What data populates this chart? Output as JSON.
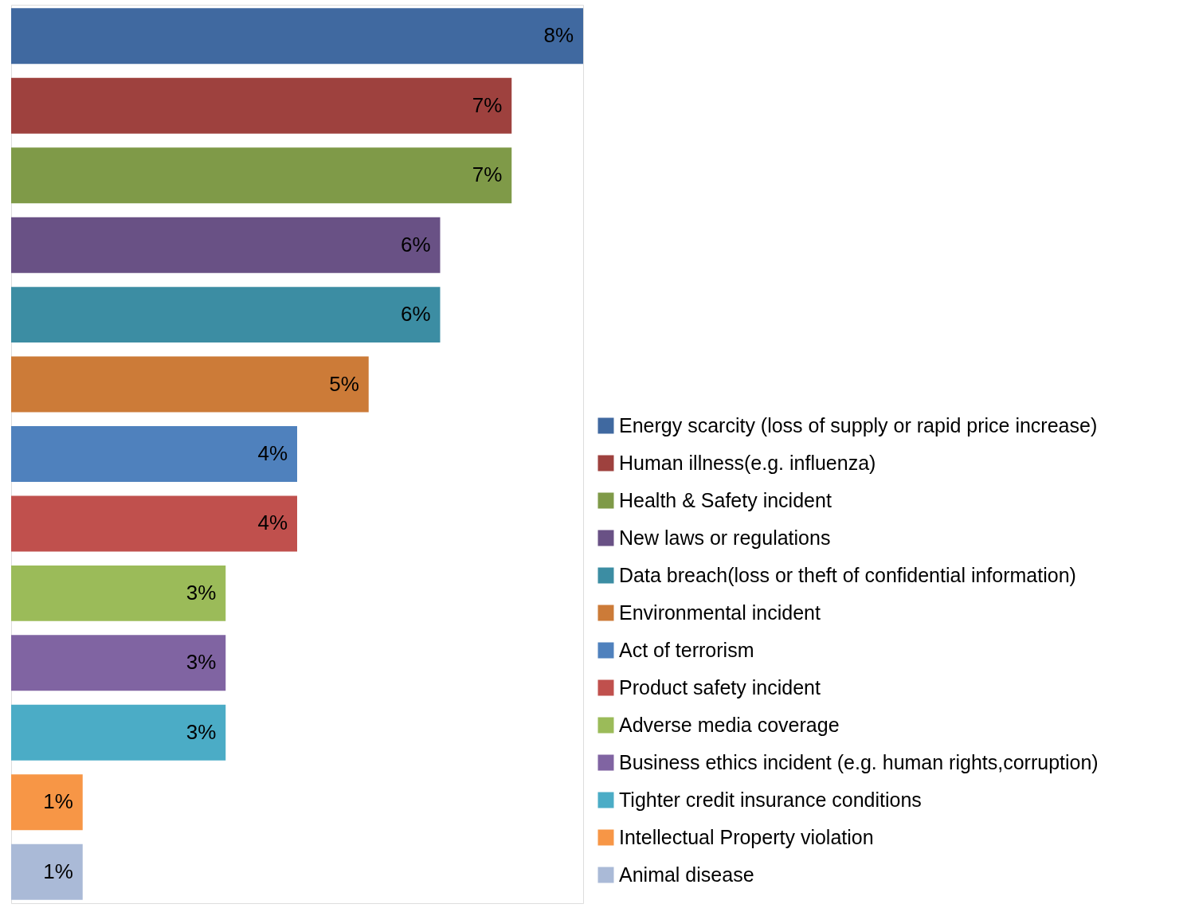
{
  "chart_data": {
    "type": "bar",
    "orientation": "horizontal",
    "stacked": true,
    "legend": "bottom right",
    "tick_labels": false,
    "categories": [
      null,
      null,
      null,
      null,
      null,
      null,
      null,
      null,
      null,
      null,
      null,
      null,
      null
    ],
    "series": [
      {
        "name": "Energy scarcity (loss of supply or rapid price increase)",
        "color": "#4069a0",
        "values": [
          8,
          null,
          null,
          null,
          null,
          null,
          null,
          null,
          null,
          null,
          null,
          null,
          null
        ],
        "value_labels": [
          "8%",
          null,
          null,
          null,
          null,
          null,
          null,
          null,
          null,
          null,
          null,
          null,
          null
        ]
      },
      {
        "name": "Human illness(e.g. influenza)",
        "color": "#9e413e",
        "values": [
          null,
          7,
          null,
          null,
          null,
          null,
          null,
          null,
          null,
          null,
          null,
          null,
          null
        ],
        "value_labels": [
          null,
          "7%",
          null,
          null,
          null,
          null,
          null,
          null,
          null,
          null,
          null,
          null,
          null
        ]
      },
      {
        "name": "Health & Safety incident",
        "color": "#7f9a48",
        "values": [
          null,
          null,
          7,
          null,
          null,
          null,
          null,
          null,
          null,
          null,
          null,
          null,
          null
        ],
        "value_labels": [
          null,
          null,
          "7%",
          null,
          null,
          null,
          null,
          null,
          null,
          null,
          null,
          null,
          null
        ]
      },
      {
        "name": "New laws or regulations",
        "color": "#695185",
        "values": [
          null,
          null,
          null,
          6,
          null,
          null,
          null,
          null,
          null,
          null,
          null,
          null,
          null
        ],
        "value_labels": [
          null,
          null,
          null,
          "6%",
          null,
          null,
          null,
          null,
          null,
          null,
          null,
          null,
          null
        ]
      },
      {
        "name": "Data breach(loss or theft of confidential information)",
        "color": "#3c8da3",
        "values": [
          null,
          null,
          null,
          null,
          6,
          null,
          null,
          null,
          null,
          null,
          null,
          null,
          null
        ],
        "value_labels": [
          null,
          null,
          null,
          null,
          "6%",
          null,
          null,
          null,
          null,
          null,
          null,
          null,
          null
        ]
      },
      {
        "name": "Environmental incident",
        "color": "#cc7b38",
        "values": [
          null,
          null,
          null,
          null,
          null,
          5,
          null,
          null,
          null,
          null,
          null,
          null,
          null
        ],
        "value_labels": [
          null,
          null,
          null,
          null,
          null,
          "5%",
          null,
          null,
          null,
          null,
          null,
          null,
          null
        ]
      },
      {
        "name": "Act of terrorism",
        "color": "#4f81bd",
        "values": [
          null,
          null,
          null,
          null,
          null,
          null,
          4,
          null,
          null,
          null,
          null,
          null,
          null
        ],
        "value_labels": [
          null,
          null,
          null,
          null,
          null,
          null,
          "4%",
          null,
          null,
          null,
          null,
          null,
          null
        ]
      },
      {
        "name": "Product safety incident",
        "color": "#c0504d",
        "values": [
          null,
          null,
          null,
          null,
          null,
          null,
          null,
          4,
          null,
          null,
          null,
          null,
          null
        ],
        "value_labels": [
          null,
          null,
          null,
          null,
          null,
          null,
          null,
          "4%",
          null,
          null,
          null,
          null,
          null
        ]
      },
      {
        "name": "Adverse media coverage",
        "color": "#9bbb59",
        "values": [
          null,
          null,
          null,
          null,
          null,
          null,
          null,
          null,
          3,
          null,
          null,
          null,
          null
        ],
        "value_labels": [
          null,
          null,
          null,
          null,
          null,
          null,
          null,
          null,
          "3%",
          null,
          null,
          null,
          null
        ]
      },
      {
        "name": "Business ethics incident (e.g. human rights,corruption)",
        "color": "#8064a2",
        "values": [
          null,
          null,
          null,
          null,
          null,
          null,
          null,
          null,
          null,
          3,
          null,
          null,
          null
        ],
        "value_labels": [
          null,
          null,
          null,
          null,
          null,
          null,
          null,
          null,
          null,
          "3%",
          null,
          null,
          null
        ]
      },
      {
        "name": "Tighter credit insurance conditions",
        "color": "#4bacc6",
        "values": [
          null,
          null,
          null,
          null,
          null,
          null,
          null,
          null,
          null,
          null,
          3,
          null,
          null
        ],
        "value_labels": [
          null,
          null,
          null,
          null,
          null,
          null,
          null,
          null,
          null,
          null,
          "3%",
          null,
          null
        ]
      },
      {
        "name": "Intellectual Property violation",
        "color": "#f79646",
        "values": [
          null,
          null,
          null,
          null,
          null,
          null,
          null,
          null,
          null,
          null,
          null,
          1,
          null
        ],
        "value_labels": [
          null,
          null,
          null,
          null,
          null,
          null,
          null,
          null,
          null,
          null,
          null,
          "1%",
          null
        ]
      },
      {
        "name": "Animal disease",
        "color": "#aabad7",
        "values": [
          null,
          null,
          null,
          null,
          null,
          null,
          null,
          null,
          null,
          null,
          null,
          null,
          1
        ],
        "value_labels": [
          null,
          null,
          null,
          null,
          null,
          null,
          null,
          null,
          null,
          null,
          null,
          null,
          "1%"
        ]
      }
    ]
  }
}
